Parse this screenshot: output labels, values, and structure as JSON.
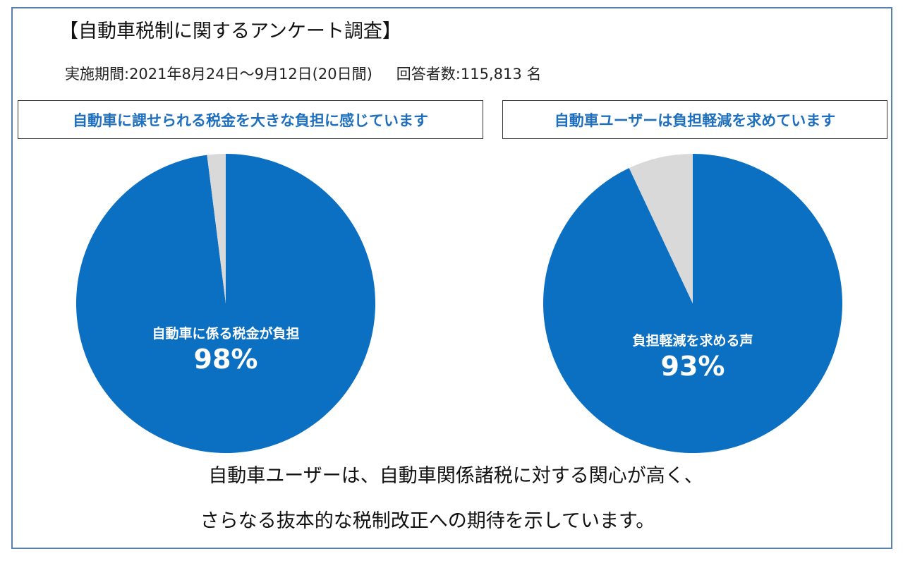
{
  "header": {
    "title": "【自動車税制に関するアンケート調査】",
    "period": "実施期間:2021年8月24日～9月12日(20日間)",
    "respondents": "回答者数:115,813 名"
  },
  "chart_data": [
    {
      "type": "pie",
      "title": "自動車に課せられる税金を大きな負担に感じています",
      "slices": [
        {
          "label": "自動車に係る税金が負担",
          "value": 98,
          "display": "98%",
          "color": "#0b6fc2"
        },
        {
          "label": "",
          "value": 2,
          "color": "#d9d9d9"
        }
      ]
    },
    {
      "type": "pie",
      "title": "自動車ユーザーは負担軽減を求めています",
      "slices": [
        {
          "label": "負担軽減を求める声",
          "value": 93,
          "display": "93%",
          "color": "#0b6fc2"
        },
        {
          "label": "",
          "value": 7,
          "color": "#d9d9d9"
        }
      ]
    }
  ],
  "footer": {
    "line1": "自動車ユーザーは、自動車関係諸税に対する関心が高く、",
    "line2": "さらなる抜本的な税制改正への期待を示しています。"
  },
  "colors": {
    "accent": "#0b6fc2",
    "remainder": "#d9d9d9",
    "caption_text": "#1f6fbf",
    "frame": "#5a7fb0"
  }
}
